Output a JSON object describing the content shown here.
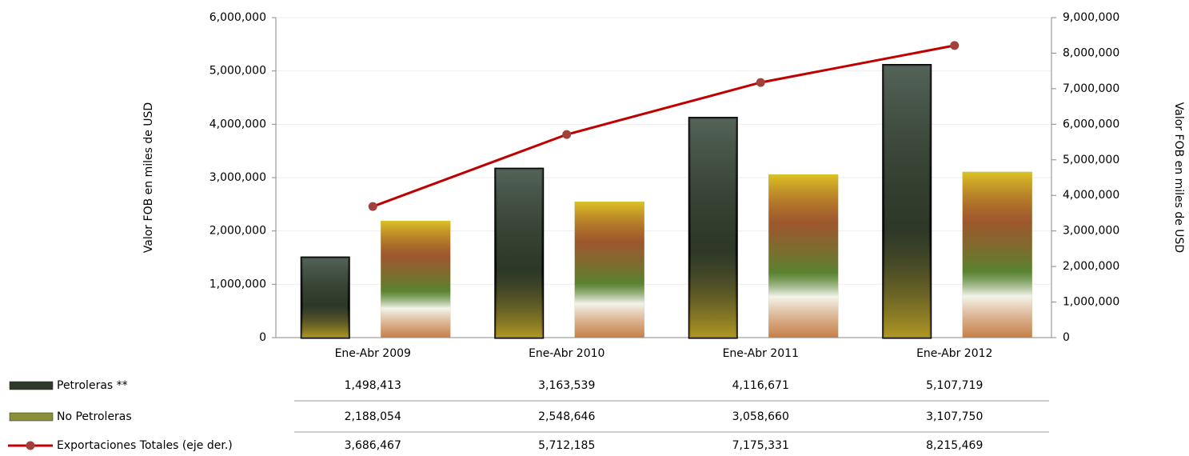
{
  "chart_data": {
    "type": "bar",
    "categories": [
      "Ene-Abr 2009",
      "Ene-Abr 2010",
      "Ene-Abr 2011",
      "Ene-Abr 2012"
    ],
    "series": [
      {
        "name": "Petroleras  **",
        "type": "bar",
        "color": "#2f3b2a",
        "values": [
          1498413,
          3163539,
          4116671,
          5107719
        ],
        "value_labels": [
          "1,498,413",
          "3,163,539",
          "4,116,671",
          "5,107,719"
        ]
      },
      {
        "name": "No Petroleras",
        "type": "bar",
        "color": "#8a8f3a",
        "values": [
          2188054,
          2548646,
          3058660,
          3107750
        ],
        "value_labels": [
          "2,188,054",
          "2,548,646",
          "3,058,660",
          "3,107,750"
        ]
      },
      {
        "name": "Exportaciones Totales (eje der.)",
        "type": "line",
        "axis": "y2",
        "color": "#c00000",
        "marker_color": "#a0413c",
        "values": [
          3686467,
          5712185,
          7175331,
          8215469
        ],
        "value_labels": [
          "3,686,467",
          "5,712,185",
          "7,175,331",
          "8,215,469"
        ]
      }
    ],
    "ylabel": "Valor FOB  en miles de USD",
    "y2label": "Valor FOB en miles de USD",
    "ylim": [
      0,
      6000000
    ],
    "yticks": [
      0,
      {
        "value": 1000000,
        "label": "1,000,000"
      },
      {
        "value": 2000000,
        "label": "2,000,000"
      },
      {
        "value": 3000000,
        "label": "3,000,000"
      },
      {
        "value": 4000000,
        "label": "4,000,000"
      },
      {
        "value": 5000000,
        "label": "5,000,000"
      },
      {
        "value": 6000000,
        "label": "6,000,000"
      }
    ],
    "y2lim": [
      0,
      9000000
    ],
    "y2ticks": [
      0,
      {
        "value": 1000000,
        "label": "1,000,000"
      },
      {
        "value": 2000000,
        "label": "2,000,000"
      },
      {
        "value": 3000000,
        "label": "3,000,000"
      },
      {
        "value": 4000000,
        "label": "4,000,000"
      },
      {
        "value": 5000000,
        "label": "5,000,000"
      },
      {
        "value": 6000000,
        "label": "6,000,000"
      },
      {
        "value": 7000000,
        "label": "7,000,000"
      },
      {
        "value": 8000000,
        "label": "8,000,000"
      },
      {
        "value": 9000000,
        "label": "9,000,000"
      }
    ],
    "grid": true
  }
}
